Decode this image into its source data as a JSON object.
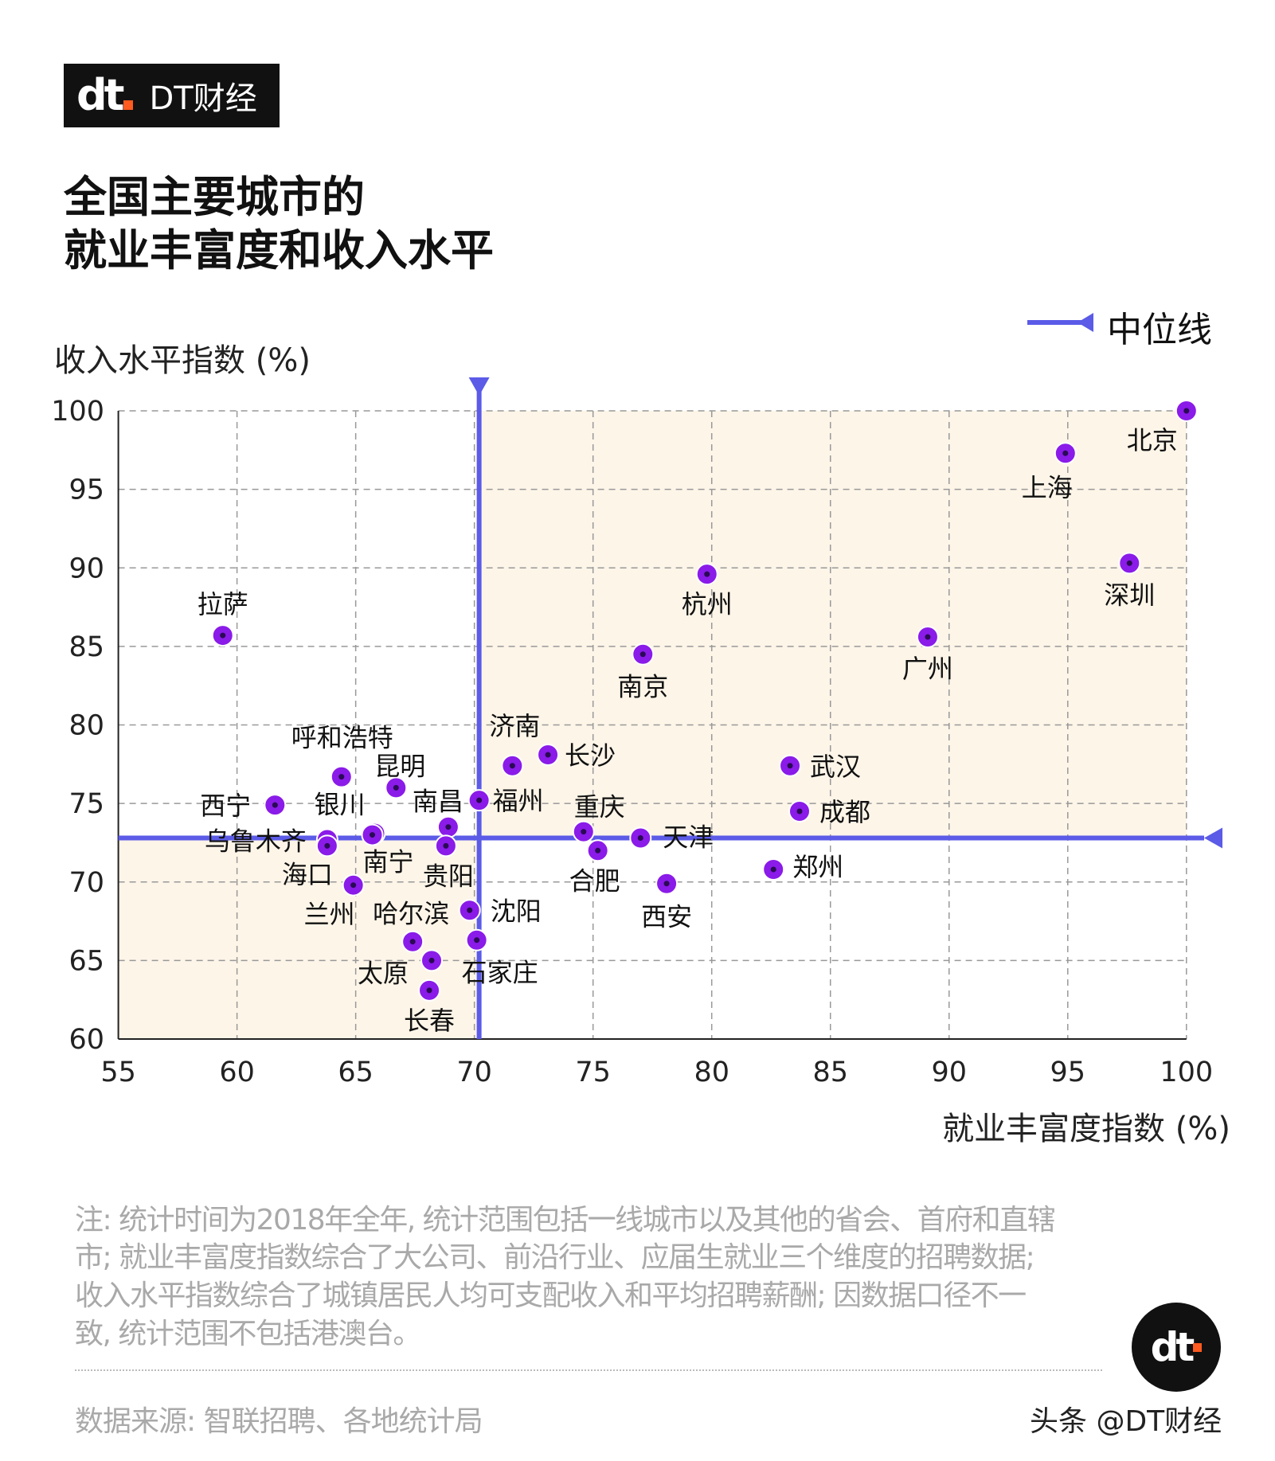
{
  "brand": {
    "logo_text": "DT财经",
    "logo_mark": "dt"
  },
  "title_lines": [
    "全国主要城市的",
    "就业丰富度和收入水平"
  ],
  "legend": {
    "median_label": "中位线"
  },
  "notes": [
    "注: 统计时间为2018年全年, 统计范围包括一线城市以及其他的省会、首府和直辖",
    "市; 就业丰富度指数综合了大公司、前沿行业、应届生就业三个维度的招聘数据;",
    "收入水平指数综合了城镇居民人均可支配收入和平均招聘薪酬; 因数据口径不一",
    "致, 统计范围不包括港澳台。"
  ],
  "source": "数据来源: 智联招聘、各地统计局",
  "credit": "头条 @DT财经",
  "colors": {
    "point": "#8a1be8",
    "median": "#5b5be8",
    "quadrant_fill": "#fdf5e8",
    "grid": "#999999"
  },
  "chart_data": {
    "type": "scatter",
    "xlabel": "就业丰富度指数 (%)",
    "ylabel": "收入水平指数 (%)",
    "xlim": [
      55,
      100
    ],
    "ylim": [
      60,
      100
    ],
    "xticks": [
      55,
      60,
      65,
      70,
      75,
      80,
      85,
      90,
      95,
      100
    ],
    "yticks": [
      60,
      65,
      70,
      75,
      80,
      85,
      90,
      95,
      100
    ],
    "grid": true,
    "median": {
      "x": 70.2,
      "y": 72.8
    },
    "legend_position": "top-right",
    "points": [
      {
        "name": "北京",
        "x": 100,
        "y": 100
      },
      {
        "name": "上海",
        "x": 94.9,
        "y": 97.3
      },
      {
        "name": "深圳",
        "x": 97.6,
        "y": 90.3
      },
      {
        "name": "杭州",
        "x": 79.8,
        "y": 89.6
      },
      {
        "name": "广州",
        "x": 89.1,
        "y": 85.6
      },
      {
        "name": "南京",
        "x": 77.1,
        "y": 84.5
      },
      {
        "name": "拉萨",
        "x": 59.4,
        "y": 85.7
      },
      {
        "name": "济南",
        "x": 71.6,
        "y": 77.4
      },
      {
        "name": "长沙",
        "x": 73.1,
        "y": 78.1
      },
      {
        "name": "武汉",
        "x": 83.3,
        "y": 77.4
      },
      {
        "name": "成都",
        "x": 83.7,
        "y": 74.5
      },
      {
        "name": "福州",
        "x": 70.2,
        "y": 75.2
      },
      {
        "name": "呼和浩特",
        "x": 64.4,
        "y": 76.7
      },
      {
        "name": "昆明",
        "x": 66.7,
        "y": 76.0
      },
      {
        "name": "西宁",
        "x": 61.6,
        "y": 74.9
      },
      {
        "name": "银川",
        "x": 65.8,
        "y": 73.1
      },
      {
        "name": "南宁",
        "x": 65.7,
        "y": 73.0
      },
      {
        "name": "乌鲁木齐",
        "x": 63.8,
        "y": 72.7
      },
      {
        "name": "海口",
        "x": 63.8,
        "y": 72.3
      },
      {
        "name": "兰州",
        "x": 64.9,
        "y": 69.8
      },
      {
        "name": "南昌",
        "x": 68.9,
        "y": 73.5
      },
      {
        "name": "贵阳",
        "x": 68.8,
        "y": 72.3
      },
      {
        "name": "沈阳",
        "x": 69.8,
        "y": 68.2
      },
      {
        "name": "哈尔滨",
        "x": 67.4,
        "y": 66.2
      },
      {
        "name": "石家庄",
        "x": 70.1,
        "y": 66.3
      },
      {
        "name": "太原",
        "x": 68.2,
        "y": 65.0
      },
      {
        "name": "长春",
        "x": 68.1,
        "y": 63.1
      },
      {
        "name": "重庆",
        "x": 74.6,
        "y": 73.2
      },
      {
        "name": "合肥",
        "x": 75.2,
        "y": 72.0
      },
      {
        "name": "天津",
        "x": 77.0,
        "y": 72.8
      },
      {
        "name": "西安",
        "x": 78.1,
        "y": 69.9
      },
      {
        "name": "郑州",
        "x": 82.6,
        "y": 70.8
      }
    ]
  }
}
